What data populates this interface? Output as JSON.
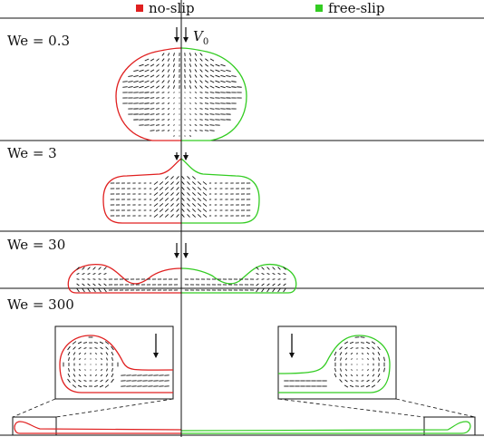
{
  "legend": {
    "items": [
      {
        "label": "no-slip",
        "color": "#e02020"
      },
      {
        "label": "free-slip",
        "color": "#33cc22"
      }
    ]
  },
  "velocity_label": {
    "symbol": "V",
    "subscript": "0"
  },
  "panels": [
    {
      "label": "We = 0.3"
    },
    {
      "label": "We = 3"
    },
    {
      "label": "We = 30"
    },
    {
      "label": "We = 300"
    }
  ],
  "colors": {
    "no_slip": "#e02020",
    "free_slip": "#33cc22",
    "vectors": "#111111"
  }
}
